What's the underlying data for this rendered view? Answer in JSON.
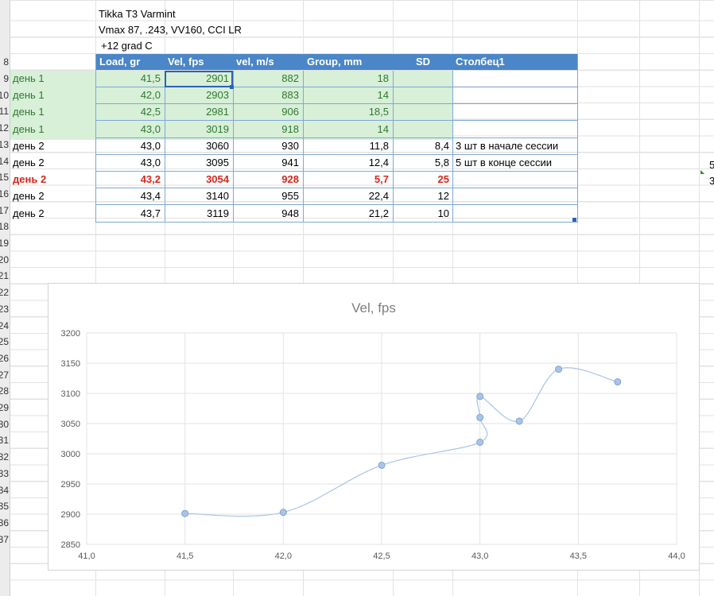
{
  "sheet": {
    "title_lines": [
      "Tikka T3 Varmint",
      "Vmax 87, .243, VV160, CCI LR",
      "+12 grad C"
    ],
    "row_numbers": [
      "8",
      "9",
      "10",
      "11",
      "12",
      "13",
      "14",
      "15",
      "16",
      "17",
      "18",
      "19",
      "20",
      "21",
      "22",
      "23",
      "24",
      "25",
      "26",
      "27",
      "28",
      "29",
      "30",
      "31",
      "32",
      "33",
      "34",
      "35",
      "36",
      "37"
    ],
    "table": {
      "headers": [
        "Load, gr",
        "Vel, fps",
        "vel, m/s",
        "Group, mm",
        "SD",
        "Столбец1"
      ],
      "rows": [
        {
          "day": "день 1",
          "load": "41,5",
          "vel_fps": "2901",
          "vel_ms": "882",
          "group": "18",
          "sd": "",
          "note": "",
          "style": "green"
        },
        {
          "day": "день 1",
          "load": "42,0",
          "vel_fps": "2903",
          "vel_ms": "883",
          "group": "14",
          "sd": "",
          "note": "",
          "style": "green"
        },
        {
          "day": "день 1",
          "load": "42,5",
          "vel_fps": "2981",
          "vel_ms": "906",
          "group": "18,5",
          "sd": "",
          "note": "",
          "style": "green"
        },
        {
          "day": "день 1",
          "load": "43,0",
          "vel_fps": "3019",
          "vel_ms": "918",
          "group": "14",
          "sd": "",
          "note": "",
          "style": "green"
        },
        {
          "day": "день 2",
          "load": "43,0",
          "vel_fps": "3060",
          "vel_ms": "930",
          "group": "11,8",
          "sd": "8,4",
          "note": "3 шт в начале сессии",
          "style": "plain"
        },
        {
          "day": "день 2",
          "load": "43,0",
          "vel_fps": "3095",
          "vel_ms": "941",
          "group": "12,4",
          "sd": "5,8",
          "note": "5 шт в конце сессии",
          "style": "plain"
        },
        {
          "day": "день 2",
          "load": "43,2",
          "vel_fps": "3054",
          "vel_ms": "928",
          "group": "5,7",
          "sd": "25",
          "note": "",
          "style": "red"
        },
        {
          "day": "день 2",
          "load": "43,4",
          "vel_fps": "3140",
          "vel_ms": "955",
          "group": "22,4",
          "sd": "12",
          "note": "",
          "style": "plain"
        },
        {
          "day": "день 2",
          "load": "43,7",
          "vel_fps": "3119",
          "vel_ms": "948",
          "group": "21,2",
          "sd": "10",
          "note": "",
          "style": "plain"
        }
      ]
    },
    "side_fragments": [
      "5",
      "3"
    ]
  },
  "chart_data": {
    "type": "scatter",
    "title": "Vel, fps",
    "xlabel": "",
    "ylabel": "",
    "xlim": [
      41.0,
      44.0
    ],
    "ylim": [
      2850,
      3200
    ],
    "x_ticks": [
      "41,0",
      "41,5",
      "42,0",
      "42,5",
      "43,0",
      "43,5",
      "44,0"
    ],
    "y_ticks": [
      "2850",
      "2900",
      "2950",
      "3000",
      "3050",
      "3100",
      "3150",
      "3200"
    ],
    "grid": true,
    "smooth_line": true,
    "series": [
      {
        "x": [
          41.5,
          42.0,
          42.5,
          43.0,
          43.0,
          43.0,
          43.2,
          43.4,
          43.7
        ],
        "y": [
          2901,
          2903,
          2981,
          3019,
          3060,
          3095,
          3054,
          3140,
          3119
        ]
      }
    ],
    "colors": {
      "marker": "#a9c4e6",
      "marker_stroke": "#7fa3d1",
      "line": "#a9c4e6",
      "grid": "#e3e3e3",
      "axis_text": "#595959",
      "title": "#7f7f7f"
    }
  }
}
